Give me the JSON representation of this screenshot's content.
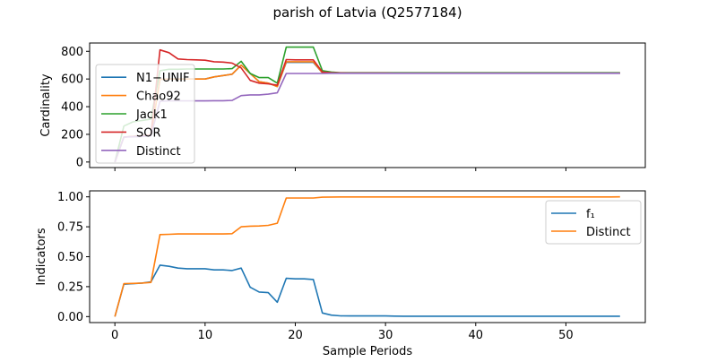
{
  "chart_data": [
    {
      "type": "line",
      "title": "parish of Latvia (Q2577184)",
      "xlabel": "",
      "ylabel": "Cardinality",
      "xlim": [
        -2.8,
        58.8
      ],
      "ylim": [
        -40,
        860
      ],
      "xticks": [
        0,
        10,
        20,
        30,
        40,
        50
      ],
      "xtick_labels_visible": false,
      "yticks": [
        0,
        200,
        400,
        600,
        800
      ],
      "ytick_labels": [
        "0",
        "200",
        "400",
        "600",
        "800"
      ],
      "legend_position": "left",
      "x": [
        0,
        1,
        2,
        3,
        4,
        5,
        6,
        7,
        8,
        9,
        10,
        11,
        12,
        13,
        14,
        15,
        16,
        17,
        18,
        19,
        20,
        21,
        22,
        23,
        24,
        25,
        26,
        27,
        28,
        29,
        30,
        31,
        32,
        33,
        34,
        35,
        36,
        37,
        38,
        39,
        40,
        41,
        42,
        43,
        44,
        45,
        46,
        47,
        48,
        49,
        50,
        51,
        52,
        53,
        54,
        55,
        56
      ],
      "series": [
        {
          "name": "N1−UNIF",
          "color": "#1f77b4",
          "values": [
            0,
            180,
            185,
            190,
            195,
            598,
            600,
            600,
            600,
            600,
            600,
            615,
            625,
            635,
            700,
            640,
            580,
            570,
            545,
            720,
            720,
            720,
            720,
            645,
            642,
            642,
            642,
            642,
            642,
            642,
            642,
            642,
            642,
            642,
            642,
            642,
            642,
            642,
            642,
            642,
            642,
            642,
            642,
            642,
            642,
            642,
            642,
            642,
            642,
            642,
            642,
            642,
            642,
            642,
            642,
            642,
            642
          ]
        },
        {
          "name": "Chao92",
          "color": "#ff7f0e",
          "values": [
            0,
            180,
            185,
            190,
            195,
            598,
            600,
            600,
            600,
            600,
            600,
            615,
            625,
            635,
            700,
            640,
            580,
            570,
            545,
            725,
            725,
            725,
            725,
            645,
            642,
            642,
            642,
            642,
            642,
            642,
            642,
            642,
            642,
            642,
            642,
            642,
            642,
            642,
            642,
            642,
            642,
            642,
            642,
            642,
            642,
            642,
            642,
            642,
            642,
            642,
            642,
            642,
            642,
            642,
            642,
            642,
            642
          ]
        },
        {
          "name": "Jack1",
          "color": "#2ca02c",
          "values": [
            0,
            260,
            290,
            300,
            310,
            660,
            670,
            670,
            672,
            672,
            672,
            672,
            672,
            675,
            728,
            640,
            610,
            610,
            570,
            830,
            830,
            830,
            830,
            660,
            650,
            645,
            645,
            645,
            645,
            645,
            645,
            645,
            645,
            645,
            645,
            645,
            645,
            645,
            645,
            645,
            645,
            645,
            645,
            645,
            645,
            645,
            645,
            645,
            645,
            645,
            645,
            645,
            645,
            645,
            645,
            645,
            645
          ]
        },
        {
          "name": "SOR",
          "color": "#d62728",
          "values": [
            0,
            180,
            185,
            190,
            195,
            810,
            790,
            745,
            740,
            738,
            736,
            725,
            722,
            715,
            680,
            590,
            570,
            565,
            555,
            740,
            738,
            738,
            738,
            650,
            645,
            644,
            643,
            643,
            643,
            643,
            643,
            642,
            642,
            642,
            642,
            642,
            642,
            642,
            642,
            642,
            642,
            642,
            642,
            642,
            642,
            642,
            642,
            642,
            642,
            642,
            642,
            642,
            642,
            642,
            642,
            642,
            642
          ]
        },
        {
          "name": "Distinct",
          "color": "#9467bd",
          "values": [
            0,
            180,
            182,
            185,
            190,
            440,
            442,
            442,
            442,
            442,
            442,
            443,
            443,
            445,
            480,
            485,
            485,
            490,
            500,
            640,
            640,
            640,
            640,
            640,
            641,
            641,
            641,
            641,
            641,
            641,
            641,
            641,
            641,
            641,
            641,
            641,
            641,
            641,
            641,
            641,
            641,
            641,
            641,
            641,
            641,
            641,
            641,
            641,
            641,
            641,
            641,
            641,
            641,
            641,
            641,
            641,
            641
          ]
        }
      ]
    },
    {
      "type": "line",
      "title": "",
      "xlabel": "Sample Periods",
      "ylabel": "Indicators",
      "xlim": [
        -2.8,
        58.8
      ],
      "ylim": [
        -0.05,
        1.05
      ],
      "xticks": [
        0,
        10,
        20,
        30,
        40,
        50
      ],
      "xtick_labels": [
        "0",
        "10",
        "20",
        "30",
        "40",
        "50"
      ],
      "yticks": [
        0,
        0.25,
        0.5,
        0.75,
        1.0
      ],
      "ytick_labels": [
        "0.00",
        "0.25",
        "0.50",
        "0.75",
        "1.00"
      ],
      "legend_position": "top-right",
      "x": [
        0,
        1,
        2,
        3,
        4,
        5,
        6,
        7,
        8,
        9,
        10,
        11,
        12,
        13,
        14,
        15,
        16,
        17,
        18,
        19,
        20,
        21,
        22,
        23,
        24,
        25,
        26,
        27,
        28,
        29,
        30,
        31,
        32,
        33,
        34,
        35,
        36,
        37,
        38,
        39,
        40,
        41,
        42,
        43,
        44,
        45,
        46,
        47,
        48,
        49,
        50,
        51,
        52,
        53,
        54,
        55,
        56
      ],
      "series": [
        {
          "name": "f₁",
          "color": "#1f77b4",
          "values": [
            0,
            0.27,
            0.275,
            0.28,
            0.29,
            0.43,
            0.42,
            0.405,
            0.4,
            0.4,
            0.4,
            0.39,
            0.39,
            0.385,
            0.405,
            0.245,
            0.205,
            0.2,
            0.12,
            0.32,
            0.315,
            0.315,
            0.31,
            0.03,
            0.012,
            0.006,
            0.005,
            0.005,
            0.005,
            0.005,
            0.005,
            0.004,
            0.003,
            0.003,
            0.003,
            0.003,
            0.003,
            0.003,
            0.003,
            0.003,
            0.003,
            0.003,
            0.003,
            0.003,
            0.003,
            0.003,
            0.003,
            0.003,
            0.003,
            0.003,
            0.003,
            0.003,
            0.003,
            0.003,
            0.003,
            0.003,
            0.003
          ]
        },
        {
          "name": "Distinct",
          "color": "#ff7f0e",
          "values": [
            0,
            0.275,
            0.277,
            0.28,
            0.285,
            0.685,
            0.687,
            0.69,
            0.69,
            0.69,
            0.69,
            0.69,
            0.69,
            0.692,
            0.75,
            0.755,
            0.757,
            0.762,
            0.78,
            0.99,
            0.99,
            0.99,
            0.99,
            0.997,
            0.998,
            0.999,
            0.999,
            0.999,
            0.999,
            0.999,
            0.999,
            0.999,
            0.999,
            0.999,
            0.999,
            0.999,
            0.999,
            0.999,
            0.999,
            0.999,
            0.999,
            0.999,
            0.999,
            0.999,
            0.999,
            0.999,
            0.999,
            0.999,
            0.999,
            0.999,
            0.999,
            0.999,
            0.999,
            0.999,
            0.999,
            0.999,
            1.0
          ]
        }
      ]
    }
  ]
}
